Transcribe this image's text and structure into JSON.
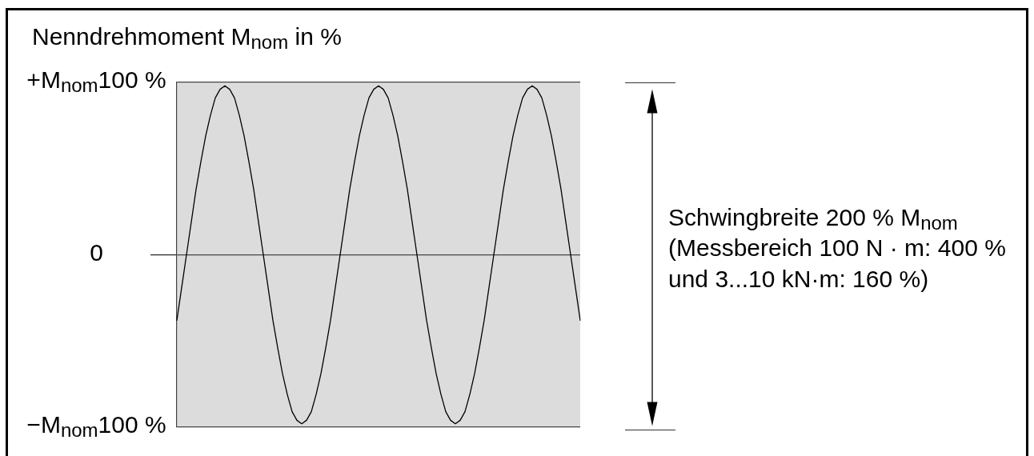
{
  "chart_data": {
    "type": "line",
    "ylabel": "Nenndrehmoment M$_{nom}$ in %",
    "categories": [
      null,
      null,
      null,
      null,
      null,
      null,
      null,
      null,
      null,
      null,
      null,
      null,
      null,
      null,
      null,
      null,
      null,
      null,
      null,
      null,
      null,
      null,
      null,
      null,
      null,
      null,
      null,
      null,
      null,
      null,
      null,
      null,
      null,
      null,
      null,
      null,
      null,
      null,
      null,
      null,
      null,
      null,
      null,
      null,
      null,
      null,
      null,
      null,
      null,
      null,
      null,
      null,
      null,
      null,
      null,
      null,
      null,
      null,
      null,
      null,
      null,
      null,
      null,
      null,
      null,
      null,
      null,
      null,
      null,
      null,
      null,
      null,
      null,
      null,
      null,
      null,
      null,
      null,
      null,
      null,
      null,
      null,
      null,
      null,
      null
    ],
    "series": [
      {
        "color": "#000000",
        "values": [
          -38,
          -19,
          0,
          19,
          38,
          54,
          69,
          81,
          91,
          96,
          98,
          96,
          91,
          81,
          69,
          54,
          38,
          19,
          0,
          -19,
          -38,
          -54,
          -69,
          -81,
          -91,
          -96,
          -98,
          -96,
          -91,
          -81,
          -69,
          -54,
          -38,
          -19,
          0,
          19,
          38,
          54,
          69,
          81,
          91,
          96,
          98,
          96,
          91,
          81,
          69,
          54,
          38,
          19,
          0,
          -19,
          -38,
          -54,
          -69,
          -81,
          -91,
          -96,
          -98,
          -96,
          -91,
          -81,
          -69,
          -54,
          -38,
          -19,
          0,
          19,
          38,
          54,
          69,
          81,
          91,
          96,
          98,
          96,
          91,
          81,
          69,
          54,
          38,
          19,
          0,
          -19,
          -38
        ]
      }
    ],
    "ylim": [
      -100,
      100
    ],
    "yticks": [
      {
        "value": -100,
        "label": "−M$_{nom}$100 %"
      },
      0,
      {
        "value": 100,
        "label": "+M$_{nom}$100 %"
      }
    ],
    "bands": [
      {
        "axis": "y",
        "from": -100,
        "to": 100,
        "color": "#dcdcdc"
      }
    ],
    "grid": "y",
    "tick_labels": "y",
    "marker": "none",
    "annotations": [
      "Schwingbreite 200 % M$_{nom}$\n(Messbereich 100 N · m: 400 %\nund 3...10 kN·m: 160 %)"
    ]
  }
}
